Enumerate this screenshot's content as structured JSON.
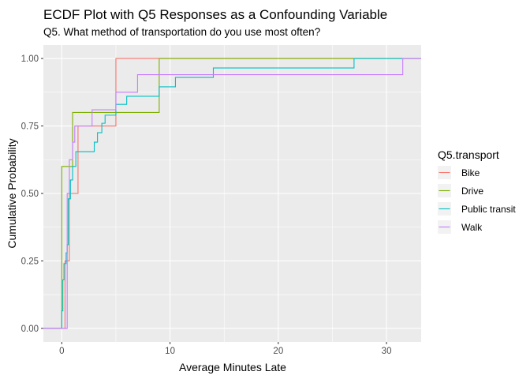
{
  "chart_data": {
    "type": "line",
    "subtype": "ecdf-step",
    "title": "ECDF Plot with Q5 Responses as a Confounding Variable",
    "subtitle": "Q5. What method of transportation do you use most often?",
    "xlabel": "Average Minutes Late",
    "ylabel": "Cumulative Probability",
    "xlim": [
      -1.7,
      33.2
    ],
    "ylim": [
      -0.05,
      1.05
    ],
    "x_ticks": [
      0,
      10,
      20,
      30
    ],
    "y_ticks": [
      0.0,
      0.25,
      0.5,
      0.75,
      1.0
    ],
    "x_tick_labels": [
      "0",
      "10",
      "20",
      "30"
    ],
    "y_tick_labels": [
      "0.00",
      "0.25",
      "0.50",
      "0.75",
      "1.00"
    ],
    "grid": true,
    "background": "#ebebeb",
    "legend": {
      "title": "Q5.transport",
      "position": "right"
    },
    "series": [
      {
        "name": "Bike",
        "color": "#F8766D",
        "points": [
          [
            0.3,
            0.25
          ],
          [
            0.7,
            0.5
          ],
          [
            1.5,
            0.75
          ],
          [
            5.0,
            1.0
          ]
        ]
      },
      {
        "name": "Drive",
        "color": "#7CAE00",
        "points": [
          [
            0.0,
            0.6
          ],
          [
            1.0,
            0.8
          ],
          [
            9.0,
            1.0
          ]
        ]
      },
      {
        "name": "Public transit",
        "color": "#00BFC4",
        "points": [
          [
            0.0,
            0.065
          ],
          [
            0.1,
            0.18
          ],
          [
            0.2,
            0.24
          ],
          [
            0.4,
            0.28
          ],
          [
            0.5,
            0.31
          ],
          [
            0.6,
            0.48
          ],
          [
            0.8,
            0.55
          ],
          [
            1.0,
            0.6
          ],
          [
            1.3,
            0.655
          ],
          [
            3.0,
            0.69
          ],
          [
            3.3,
            0.725
          ],
          [
            3.7,
            0.76
          ],
          [
            4.0,
            0.79
          ],
          [
            5.0,
            0.83
          ],
          [
            6.0,
            0.86
          ],
          [
            9.0,
            0.895
          ],
          [
            10.5,
            0.93
          ],
          [
            14.0,
            0.965
          ],
          [
            27.0,
            1.0
          ]
        ]
      },
      {
        "name": "Walk",
        "color": "#C77CFF",
        "points": [
          [
            0.5,
            0.5
          ],
          [
            0.7,
            0.625
          ],
          [
            1.0,
            0.69
          ],
          [
            1.2,
            0.75
          ],
          [
            2.8,
            0.81
          ],
          [
            5.0,
            0.875
          ],
          [
            7.0,
            0.94
          ],
          [
            31.5,
            1.0
          ]
        ]
      }
    ]
  }
}
